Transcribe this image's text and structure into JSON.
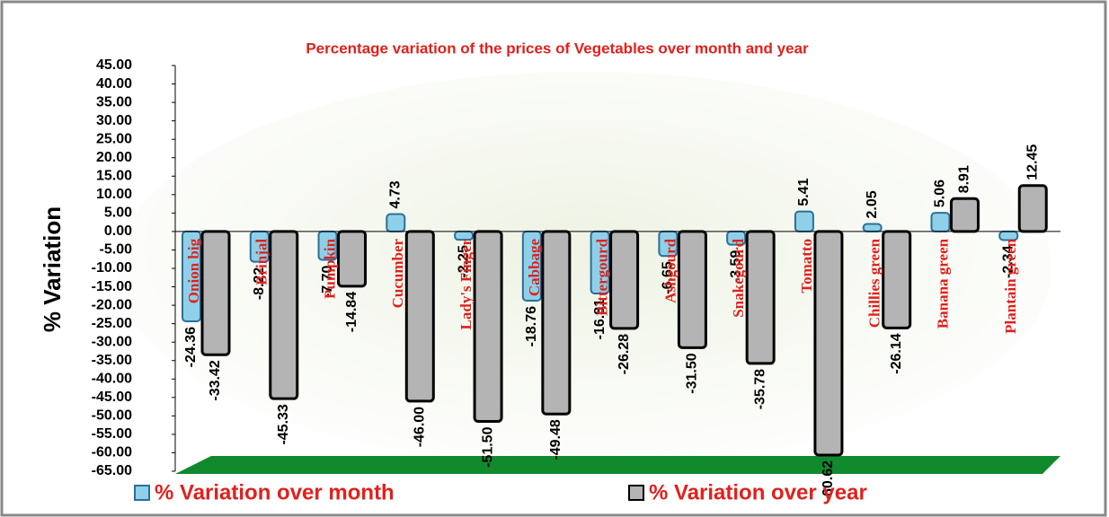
{
  "chart_data": {
    "type": "bar",
    "title": "Percentage variation of the prices of Vegetables over month and year",
    "y_label": "% Variation",
    "categories": [
      "Onion big",
      "Brinjal",
      "Pumpkin",
      "Cucumber",
      "Lady's Finger",
      "Cabbage",
      "Bittergourd",
      "Ashgourd",
      "Snakegourd",
      "Tomatto",
      "Chillies green",
      "Banana green",
      "Plantain green"
    ],
    "series": [
      {
        "name": "% Variation over month",
        "color": "#8fd0e8",
        "values": [
          -24.36,
          -8.22,
          -7.7,
          4.73,
          -2.25,
          -18.76,
          -16.81,
          -6.65,
          -3.59,
          5.41,
          2.05,
          5.06,
          -2.34
        ],
        "value_labels": [
          "-24.36",
          "-8.22",
          "-7.70",
          "4.73",
          "-2.25",
          "-18.76",
          "-16.81",
          "-6.65",
          "-3.59",
          "5.41",
          "2.05",
          "5.06",
          "-2.34"
        ]
      },
      {
        "name": "% Variation over year",
        "color": "#b4b4b4",
        "values": [
          -33.42,
          -45.33,
          -14.84,
          -46.0,
          -51.5,
          -49.48,
          -26.28,
          -31.5,
          -35.78,
          -60.62,
          -26.14,
          8.91,
          12.45
        ],
        "value_labels": [
          "-33.42",
          "-45.33",
          "-14.84",
          "-46.00",
          "-51.50",
          "-49.48",
          "-26.28",
          "-31.50",
          "-35.78",
          "-60.62",
          "-26.14",
          "8.91",
          "12.45"
        ]
      }
    ],
    "ylim": [
      -65,
      45
    ],
    "yticks": [
      {
        "value": 45,
        "label": "45.00"
      },
      {
        "value": 40,
        "label": "40.00"
      },
      {
        "value": 35,
        "label": "35.00"
      },
      {
        "value": 30,
        "label": "30.00"
      },
      {
        "value": 25,
        "label": "25.00"
      },
      {
        "value": 20,
        "label": "20.00"
      },
      {
        "value": 15,
        "label": "15.00"
      },
      {
        "value": 10,
        "label": "10.00"
      },
      {
        "value": 5,
        "label": "5.00"
      },
      {
        "value": 0,
        "label": "0.00"
      },
      {
        "value": -5,
        "label": "-5.00"
      },
      {
        "value": -10,
        "label": "-10.00"
      },
      {
        "value": -15,
        "label": "-15.00"
      },
      {
        "value": -20,
        "label": "-20.00"
      },
      {
        "value": -25,
        "label": "-25.00"
      },
      {
        "value": -30,
        "label": "-30.00"
      },
      {
        "value": -35,
        "label": "-35.00"
      },
      {
        "value": -40,
        "label": "-40.00"
      },
      {
        "value": -45,
        "label": "-45.00"
      },
      {
        "value": -50,
        "label": "-50.00"
      },
      {
        "value": -55,
        "label": "-55.00"
      },
      {
        "value": -60,
        "label": "-60.00"
      },
      {
        "value": -65,
        "label": "-65.00"
      }
    ],
    "grid": false
  }
}
